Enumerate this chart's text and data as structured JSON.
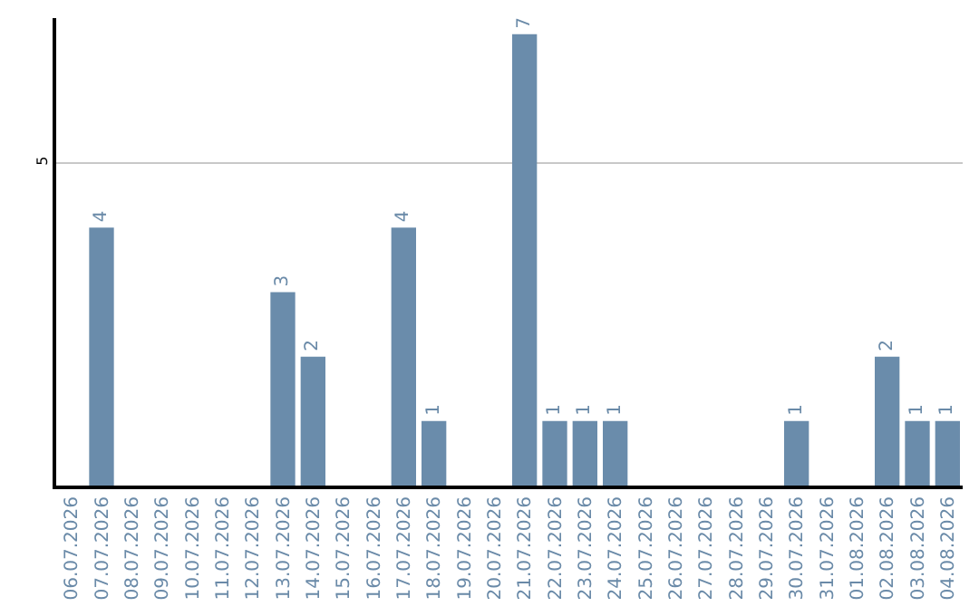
{
  "chart_data": {
    "type": "bar",
    "categories": [
      "06.07.2026",
      "07.07.2026",
      "08.07.2026",
      "09.07.2026",
      "10.07.2026",
      "11.07.2026",
      "12.07.2026",
      "13.07.2026",
      "14.07.2026",
      "15.07.2026",
      "16.07.2026",
      "17.07.2026",
      "18.07.2026",
      "19.07.2026",
      "20.07.2026",
      "21.07.2026",
      "22.07.2026",
      "23.07.2026",
      "24.07.2026",
      "25.07.2026",
      "26.07.2026",
      "27.07.2026",
      "28.07.2026",
      "29.07.2026",
      "30.07.2026",
      "31.07.2026",
      "01.08.2026",
      "02.08.2026",
      "03.08.2026",
      "04.08.2026"
    ],
    "values": [
      0,
      4,
      0,
      0,
      0,
      0,
      0,
      3,
      2,
      0,
      0,
      4,
      1,
      0,
      0,
      7,
      1,
      1,
      1,
      0,
      0,
      0,
      0,
      0,
      1,
      0,
      0,
      2,
      1,
      1
    ],
    "value_labels": [
      null,
      "4",
      null,
      null,
      null,
      null,
      null,
      "3",
      "2",
      null,
      null,
      "4",
      "1",
      null,
      null,
      "7",
      "1",
      "1",
      "1",
      null,
      null,
      null,
      null,
      null,
      "1",
      null,
      null,
      "2",
      "1",
      "1"
    ],
    "color": "#6a8cab",
    "ylim": [
      0,
      7.25
    ],
    "yticks": [
      5
    ],
    "grid": "y"
  }
}
